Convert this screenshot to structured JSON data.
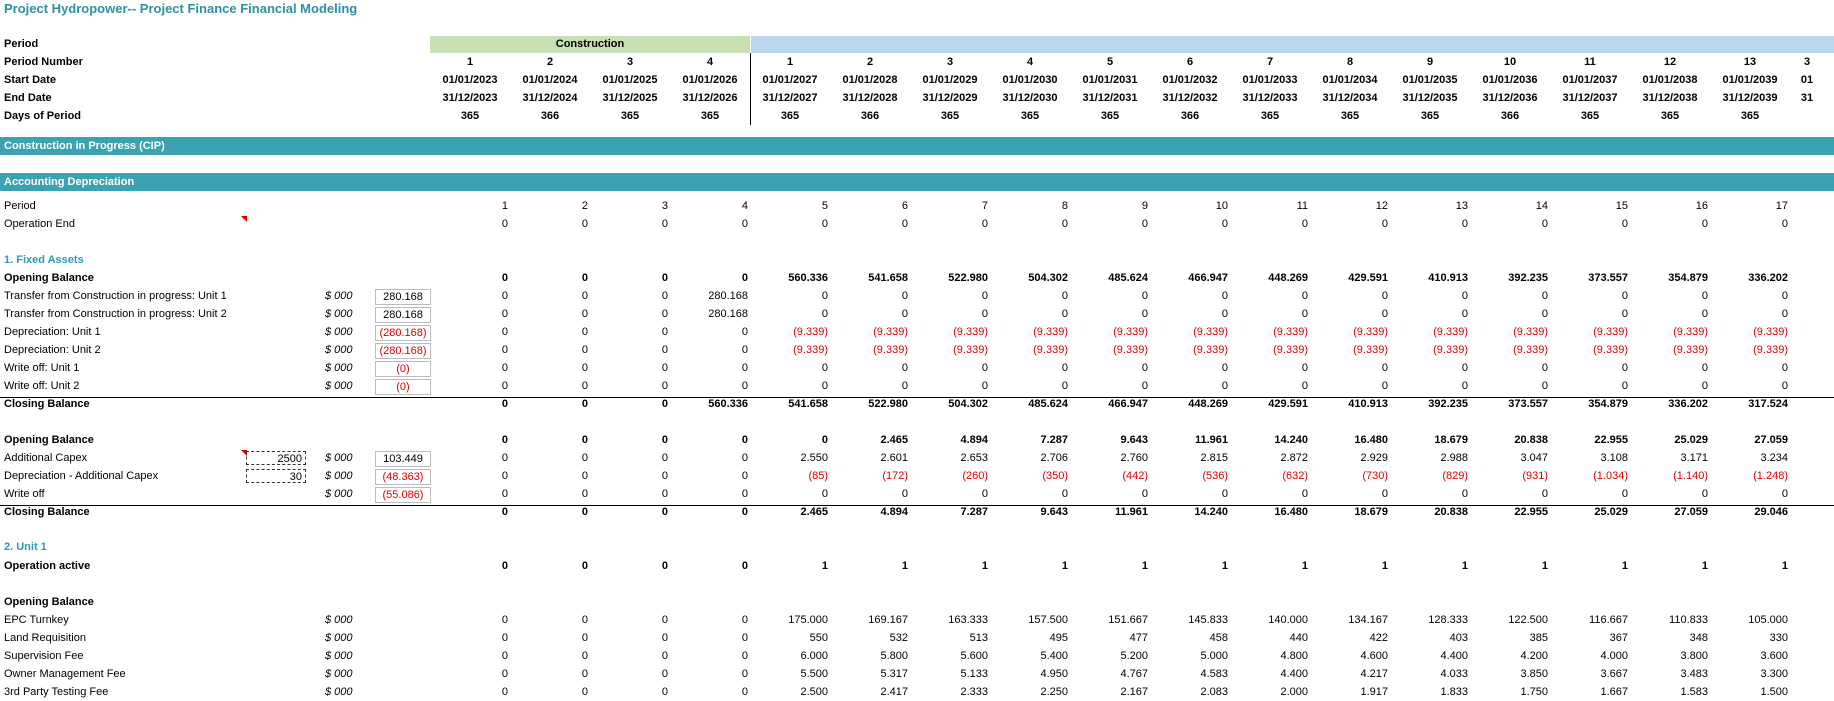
{
  "title": "Project Hydropower-- Project Finance Financial Modeling",
  "header": {
    "construction_label": "Construction",
    "row_labels": [
      "Period",
      "Period Number",
      "Start Date",
      "End Date",
      "Days of Period"
    ],
    "period_numbers": [
      "1",
      "2",
      "3",
      "4",
      "1",
      "2",
      "3",
      "4",
      "5",
      "6",
      "7",
      "8",
      "9",
      "10",
      "11",
      "12",
      "13"
    ],
    "start_dates": [
      "01/01/2023",
      "01/01/2024",
      "01/01/2025",
      "01/01/2026",
      "01/01/2027",
      "01/01/2028",
      "01/01/2029",
      "01/01/2030",
      "01/01/2031",
      "01/01/2032",
      "01/01/2033",
      "01/01/2034",
      "01/01/2035",
      "01/01/2036",
      "01/01/2037",
      "01/01/2038",
      "01/01/2039"
    ],
    "end_dates": [
      "31/12/2023",
      "31/12/2024",
      "31/12/2025",
      "31/12/2026",
      "31/12/2027",
      "31/12/2028",
      "31/12/2029",
      "31/12/2030",
      "31/12/2031",
      "31/12/2032",
      "31/12/2033",
      "31/12/2034",
      "31/12/2035",
      "31/12/2036",
      "31/12/2037",
      "31/12/2038",
      "31/12/2039"
    ],
    "days": [
      "365",
      "366",
      "365",
      "365",
      "365",
      "366",
      "365",
      "365",
      "365",
      "366",
      "365",
      "365",
      "365",
      "366",
      "365",
      "365",
      "365"
    ],
    "overflow_number": "01",
    "overflow_end": "31",
    "overflow_period": "3"
  },
  "bands": {
    "cip": "Construction in Progress (CIP)",
    "dep": "Accounting Depreciation"
  },
  "sections": {
    "fixed_assets": "1. Fixed Assets",
    "unit1": "2. Unit 1"
  },
  "unit_label": "$ 000",
  "rows": [
    {
      "label": "Period",
      "bold": false,
      "vals": [
        "1",
        "2",
        "3",
        "4",
        "5",
        "6",
        "7",
        "8",
        "9",
        "10",
        "11",
        "12",
        "13",
        "14",
        "15",
        "16",
        "17"
      ]
    },
    {
      "label": "Operation End",
      "bold": false,
      "vals": [
        "0",
        "0",
        "0",
        "0",
        "0",
        "0",
        "0",
        "0",
        "0",
        "0",
        "0",
        "0",
        "0",
        "0",
        "0",
        "0",
        "0"
      ]
    },
    {
      "label": "Opening Balance",
      "bold": true,
      "vals": [
        "0",
        "0",
        "0",
        "0",
        "560.336",
        "541.658",
        "522.980",
        "504.302",
        "485.624",
        "466.947",
        "448.269",
        "429.591",
        "410.913",
        "392.235",
        "373.557",
        "354.879",
        "336.202"
      ]
    },
    {
      "label": "Transfer from Construction in progress: Unit 1",
      "unit": true,
      "input": "280.168",
      "vals": [
        "0",
        "0",
        "0",
        "280.168",
        "0",
        "0",
        "0",
        "0",
        "0",
        "0",
        "0",
        "0",
        "0",
        "0",
        "0",
        "0",
        "0"
      ]
    },
    {
      "label": "Transfer from Construction in progress: Unit 2",
      "unit": true,
      "input": "280.168",
      "vals": [
        "0",
        "0",
        "0",
        "280.168",
        "0",
        "0",
        "0",
        "0",
        "0",
        "0",
        "0",
        "0",
        "0",
        "0",
        "0",
        "0",
        "0"
      ]
    },
    {
      "label": "Depreciation: Unit 1",
      "unit": true,
      "input": "(280.168)",
      "vals": [
        "0",
        "0",
        "0",
        "0",
        "(9.339)",
        "(9.339)",
        "(9.339)",
        "(9.339)",
        "(9.339)",
        "(9.339)",
        "(9.339)",
        "(9.339)",
        "(9.339)",
        "(9.339)",
        "(9.339)",
        "(9.339)",
        "(9.339)"
      ]
    },
    {
      "label": "Depreciation: Unit 2",
      "unit": true,
      "input": "(280.168)",
      "vals": [
        "0",
        "0",
        "0",
        "0",
        "(9.339)",
        "(9.339)",
        "(9.339)",
        "(9.339)",
        "(9.339)",
        "(9.339)",
        "(9.339)",
        "(9.339)",
        "(9.339)",
        "(9.339)",
        "(9.339)",
        "(9.339)",
        "(9.339)"
      ]
    },
    {
      "label": "Write off: Unit 1",
      "unit": true,
      "input": "(0)",
      "vals": [
        "0",
        "0",
        "0",
        "0",
        "0",
        "0",
        "0",
        "0",
        "0",
        "0",
        "0",
        "0",
        "0",
        "0",
        "0",
        "0",
        "0"
      ]
    },
    {
      "label": "Write off: Unit 2",
      "unit": true,
      "input": "(0)",
      "vals": [
        "0",
        "0",
        "0",
        "0",
        "0",
        "0",
        "0",
        "0",
        "0",
        "0",
        "0",
        "0",
        "0",
        "0",
        "0",
        "0",
        "0"
      ]
    },
    {
      "label": "Closing Balance",
      "bold": true,
      "vals": [
        "0",
        "0",
        "0",
        "560.336",
        "541.658",
        "522.980",
        "504.302",
        "485.624",
        "466.947",
        "448.269",
        "429.591",
        "410.913",
        "392.235",
        "373.557",
        "354.879",
        "336.202",
        "317.524"
      ]
    },
    {
      "label": "Opening Balance",
      "bold": true,
      "vals": [
        "0",
        "0",
        "0",
        "0",
        "0",
        "2.465",
        "4.894",
        "7.287",
        "9.643",
        "11.961",
        "14.240",
        "16.480",
        "18.679",
        "20.838",
        "22.955",
        "25.029",
        "27.059"
      ]
    },
    {
      "label": "Additional Capex",
      "unit": true,
      "dash": "2500",
      "input": "103.449",
      "vals": [
        "0",
        "0",
        "0",
        "0",
        "2.550",
        "2.601",
        "2.653",
        "2.706",
        "2.760",
        "2.815",
        "2.872",
        "2.929",
        "2.988",
        "3.047",
        "3.108",
        "3.171",
        "3.234"
      ]
    },
    {
      "label": "Depreciation - Additional Capex",
      "unit": true,
      "dash": "30",
      "input": "(48.363)",
      "vals": [
        "0",
        "0",
        "0",
        "0",
        "(85)",
        "(172)",
        "(260)",
        "(350)",
        "(442)",
        "(536)",
        "(632)",
        "(730)",
        "(829)",
        "(931)",
        "(1.034)",
        "(1.140)",
        "(1.248)"
      ]
    },
    {
      "label": "Write off",
      "unit": true,
      "input": "(55.086)",
      "vals": [
        "0",
        "0",
        "0",
        "0",
        "0",
        "0",
        "0",
        "0",
        "0",
        "0",
        "0",
        "0",
        "0",
        "0",
        "0",
        "0",
        "0"
      ]
    },
    {
      "label": "Closing Balance",
      "bold": true,
      "vals": [
        "0",
        "0",
        "0",
        "0",
        "2.465",
        "4.894",
        "7.287",
        "9.643",
        "11.961",
        "14.240",
        "16.480",
        "18.679",
        "20.838",
        "22.955",
        "25.029",
        "27.059",
        "29.046"
      ]
    },
    {
      "label": "Operation active",
      "bold": true,
      "vals": [
        "0",
        "0",
        "0",
        "0",
        "1",
        "1",
        "1",
        "1",
        "1",
        "1",
        "1",
        "1",
        "1",
        "1",
        "1",
        "1",
        "1"
      ]
    },
    {
      "label": "Opening Balance",
      "bold": true,
      "vals": []
    },
    {
      "label": "EPC Turnkey",
      "unit": true,
      "vals": [
        "0",
        "0",
        "0",
        "0",
        "175.000",
        "169.167",
        "163.333",
        "157.500",
        "151.667",
        "145.833",
        "140.000",
        "134.167",
        "128.333",
        "122.500",
        "116.667",
        "110.833",
        "105.000"
      ]
    },
    {
      "label": "Land Requisition",
      "unit": true,
      "vals": [
        "0",
        "0",
        "0",
        "0",
        "550",
        "532",
        "513",
        "495",
        "477",
        "458",
        "440",
        "422",
        "403",
        "385",
        "367",
        "348",
        "330"
      ]
    },
    {
      "label": "Supervision Fee",
      "unit": true,
      "vals": [
        "0",
        "0",
        "0",
        "0",
        "6.000",
        "5.800",
        "5.600",
        "5.400",
        "5.200",
        "5.000",
        "4.800",
        "4.600",
        "4.400",
        "4.200",
        "4.000",
        "3.800",
        "3.600"
      ]
    },
    {
      "label": "Owner Management Fee",
      "unit": true,
      "vals": [
        "0",
        "0",
        "0",
        "0",
        "5.500",
        "5.317",
        "5.133",
        "4.950",
        "4.767",
        "4.583",
        "4.400",
        "4.217",
        "4.033",
        "3.850",
        "3.667",
        "3.483",
        "3.300"
      ]
    },
    {
      "label": "3rd Party Testing Fee",
      "unit": true,
      "vals": [
        "0",
        "0",
        "0",
        "0",
        "2.500",
        "2.417",
        "2.333",
        "2.250",
        "2.167",
        "2.083",
        "2.000",
        "1.917",
        "1.833",
        "1.750",
        "1.667",
        "1.583",
        "1.500"
      ]
    }
  ]
}
